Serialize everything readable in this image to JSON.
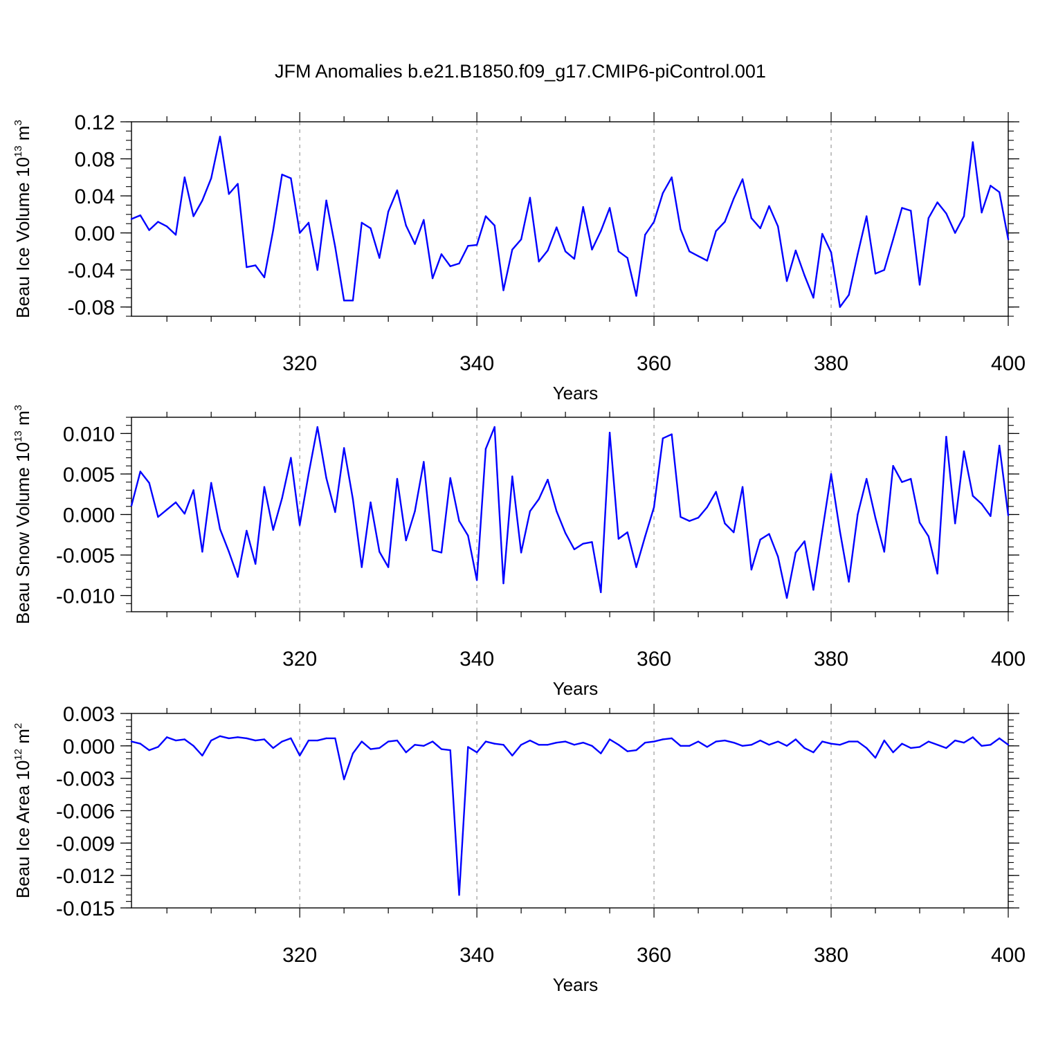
{
  "title": "JFM Anomalies b.e21.B1850.f09_g17.CMIP6-piControl.001",
  "colors": {
    "series": "#0000ff",
    "grid": "#9a9a9a",
    "axis": "#000000"
  },
  "chart_data": [
    {
      "type": "line",
      "name": "ice-volume",
      "ylabel": {
        "main": "Beau Ice Volume 10",
        "exp": "13",
        "unit": "m",
        "unit_exp": "3"
      },
      "xlabel": "Years",
      "xlim": [
        301,
        400
      ],
      "ylim": [
        -0.09,
        0.12
      ],
      "xticks": [
        320,
        340,
        360,
        380,
        400
      ],
      "yticks": [
        -0.08,
        -0.04,
        0.0,
        0.04,
        0.08,
        0.12
      ],
      "ytick_labels": [
        "-0.08",
        "-0.04",
        "0.00",
        "0.04",
        "0.08",
        "0.12"
      ],
      "y_minor_step": 0.01,
      "x_start": 301,
      "values": [
        0.015,
        0.019,
        0.003,
        0.012,
        0.007,
        -0.002,
        0.06,
        0.018,
        0.035,
        0.059,
        0.104,
        0.042,
        0.053,
        -0.037,
        -0.035,
        -0.048,
        0.003,
        0.063,
        0.059,
        0.0,
        0.011,
        -0.04,
        0.035,
        -0.015,
        -0.073,
        -0.073,
        0.011,
        0.005,
        -0.027,
        0.023,
        0.046,
        0.008,
        -0.012,
        0.014,
        -0.049,
        -0.023,
        -0.036,
        -0.033,
        -0.014,
        -0.013,
        0.018,
        0.008,
        -0.062,
        -0.018,
        -0.007,
        0.038,
        -0.031,
        -0.019,
        0.006,
        -0.02,
        -0.028,
        0.028,
        -0.018,
        0.002,
        0.027,
        -0.02,
        -0.027,
        -0.068,
        -0.002,
        0.012,
        0.043,
        0.06,
        0.004,
        -0.02,
        -0.025,
        -0.03,
        0.002,
        0.012,
        0.037,
        0.058,
        0.016,
        0.005,
        0.029,
        0.007,
        -0.052,
        -0.019,
        -0.046,
        -0.07,
        -0.001,
        -0.021,
        -0.08,
        -0.067,
        -0.023,
        0.018,
        -0.044,
        -0.04,
        -0.007,
        0.027,
        0.024,
        -0.056,
        0.016,
        0.033,
        0.021,
        0.0,
        0.018,
        0.098,
        0.022,
        0.051,
        0.044,
        -0.007
      ]
    },
    {
      "type": "line",
      "name": "snow-volume",
      "ylabel": {
        "main": "Beau Snow Volume 10",
        "exp": "13",
        "unit": "m",
        "unit_exp": "3"
      },
      "xlabel": "Years",
      "xlim": [
        301,
        400
      ],
      "ylim": [
        -0.012,
        0.012
      ],
      "xticks": [
        320,
        340,
        360,
        380,
        400
      ],
      "yticks": [
        -0.01,
        -0.005,
        0.0,
        0.005,
        0.01
      ],
      "ytick_labels": [
        "-0.010",
        "-0.005",
        "0.000",
        "0.005",
        "0.010"
      ],
      "y_minor_step": 0.001,
      "x_start": 301,
      "values": [
        0.0011,
        0.0053,
        0.0039,
        -0.0003,
        0.0006,
        0.0015,
        0.0001,
        0.003,
        -0.0046,
        0.0039,
        -0.0018,
        -0.0046,
        -0.0077,
        -0.002,
        -0.0061,
        0.0034,
        -0.0019,
        0.002,
        0.007,
        -0.0013,
        0.005,
        0.0108,
        0.0045,
        0.0003,
        0.0082,
        0.0019,
        -0.0065,
        0.0015,
        -0.0046,
        -0.0065,
        0.0044,
        -0.0032,
        0.0004,
        0.0065,
        -0.0044,
        -0.0047,
        0.0045,
        -0.0008,
        -0.0026,
        -0.0081,
        0.0081,
        0.0108,
        -0.0085,
        0.0047,
        -0.0047,
        0.0004,
        0.0019,
        0.0043,
        0.0004,
        -0.0023,
        -0.0043,
        -0.0036,
        -0.0034,
        -0.0096,
        0.0101,
        -0.003,
        -0.0022,
        -0.0065,
        -0.0027,
        0.0009,
        0.0094,
        0.0099,
        -0.0003,
        -0.0008,
        -0.0004,
        0.0009,
        0.0028,
        -0.0011,
        -0.0022,
        0.0034,
        -0.0068,
        -0.0031,
        -0.0024,
        -0.0052,
        -0.0103,
        -0.0047,
        -0.0033,
        -0.0093,
        -0.0021,
        0.005,
        -0.0021,
        -0.0083,
        0.0,
        0.0044,
        -0.0004,
        -0.0046,
        0.006,
        0.004,
        0.0044,
        -0.001,
        -0.0027,
        -0.0073,
        0.0096,
        -0.0011,
        0.0078,
        0.0023,
        0.0013,
        -0.0002,
        0.0085,
        -0.0001
      ]
    },
    {
      "type": "line",
      "name": "ice-area",
      "ylabel": {
        "main": "Beau Ice Area 10",
        "exp": "12",
        "unit": "m",
        "unit_exp": "2"
      },
      "xlabel": "Years",
      "xlim": [
        301,
        400
      ],
      "ylim": [
        -0.015,
        0.003
      ],
      "xticks": [
        320,
        340,
        360,
        380,
        400
      ],
      "yticks": [
        -0.015,
        -0.012,
        -0.009,
        -0.006,
        -0.003,
        0.0,
        0.003
      ],
      "ytick_labels": [
        "-0.015",
        "-0.012",
        "-0.009",
        "-0.006",
        "-0.003",
        "0.000",
        "0.003"
      ],
      "y_minor_step": 0.0006,
      "x_start": 301,
      "values": [
        0.0004,
        0.0002,
        -0.0004,
        -0.0001,
        0.0008,
        0.0005,
        0.0006,
        0.0,
        -0.0009,
        0.0005,
        0.0009,
        0.0007,
        0.0008,
        0.0007,
        0.0005,
        0.0006,
        -0.0002,
        0.0004,
        0.0007,
        -0.0009,
        0.0005,
        0.0005,
        0.0007,
        0.0007,
        -0.0031,
        -0.0007,
        0.0004,
        -0.0003,
        -0.0002,
        0.0004,
        0.0005,
        -0.0006,
        0.0001,
        0.0,
        0.0004,
        -0.0003,
        -0.0004,
        -0.0138,
        -0.0001,
        -0.0006,
        0.0004,
        0.0002,
        0.0001,
        -0.0009,
        0.0001,
        0.0005,
        0.0001,
        0.0001,
        0.0003,
        0.0004,
        0.0001,
        0.0003,
        0.0,
        -0.0007,
        0.0006,
        0.0001,
        -0.0005,
        -0.0004,
        0.0003,
        0.0004,
        0.0006,
        0.0007,
        0.0,
        0.0,
        0.0004,
        -0.0001,
        0.0004,
        0.0005,
        0.0003,
        0.0,
        0.0001,
        0.0005,
        0.0001,
        0.0004,
        0.0,
        0.0006,
        -0.0002,
        -0.0006,
        0.0004,
        0.0002,
        0.0001,
        0.0004,
        0.0004,
        -0.0002,
        -0.0011,
        0.0005,
        -0.0006,
        0.0002,
        -0.0002,
        -0.0001,
        0.0004,
        0.0001,
        -0.0002,
        0.0005,
        0.0003,
        0.0008,
        0.0,
        0.0001,
        0.0007,
        0.0001
      ]
    }
  ]
}
